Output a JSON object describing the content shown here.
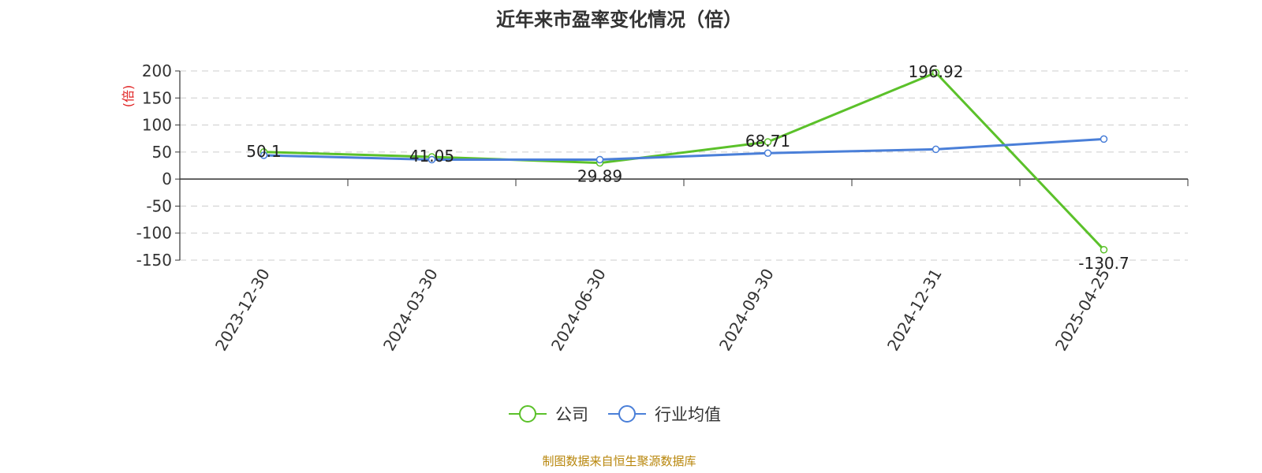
{
  "chart_data": {
    "type": "line",
    "title": "近年来市盈率变化情况（倍）",
    "ylabel": "(倍)",
    "categories": [
      "2023-12-30",
      "2024-03-30",
      "2024-06-30",
      "2024-09-30",
      "2024-12-31",
      "2025-04-25"
    ],
    "yticks": [
      "200",
      "150",
      "100",
      "50",
      "0",
      "-50",
      "-100",
      "-150"
    ],
    "ylim": [
      -150,
      200
    ],
    "grid": true,
    "legend_position": "bottom-center",
    "series": [
      {
        "name": "公司",
        "color": "#5bc12a",
        "values": [
          50.1,
          41.05,
          29.89,
          68.71,
          196.92,
          -130.7
        ],
        "labels": [
          "50.1",
          "41.05",
          "29.89",
          "68.71",
          "196.92",
          "-130.7"
        ]
      },
      {
        "name": "行业均值",
        "color": "#4a7fd8",
        "values": [
          44,
          36,
          36,
          48,
          55,
          74
        ]
      }
    ]
  },
  "source_text": "制图数据来自恒生聚源数据库",
  "colors": {
    "ylabel": "#e02020",
    "source": "#b8860b",
    "grid": "#cccccc",
    "axis": "#333333"
  }
}
